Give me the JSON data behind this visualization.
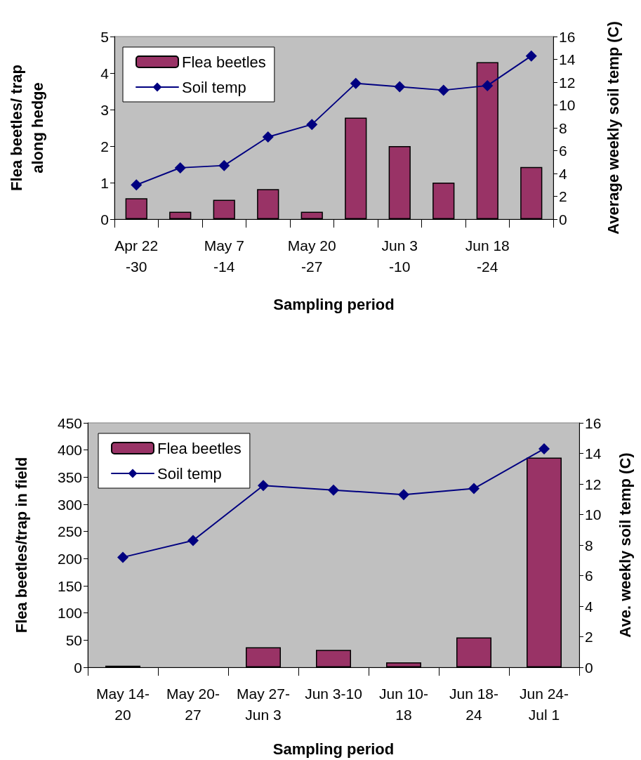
{
  "chart_data": [
    {
      "type": "bar",
      "categories": [
        "Apr 22\n-30",
        null,
        "May 7\n-14",
        null,
        "May 20\n-27",
        null,
        "Jun 3\n-10",
        null,
        "Jun 18\n-24",
        null
      ],
      "series": [
        {
          "name": "Flea beetles",
          "color": "#993366",
          "values": [
            0.57,
            0.2,
            0.53,
            0.82,
            0.2,
            2.78,
            2.0,
            1.0,
            4.3,
            1.43
          ]
        },
        {
          "name": "Soil temp",
          "type": "line",
          "axis": "y2",
          "color": "#000080",
          "values": [
            3.0,
            4.5,
            4.7,
            7.2,
            8.3,
            11.9,
            11.6,
            11.3,
            11.7,
            14.3
          ]
        }
      ],
      "xlabel": "Sampling period",
      "ylabel": "Flea beetles/ trap\nalong hedge",
      "y2label": "Average weekly soil temp (C)",
      "ylim": [
        0,
        5
      ],
      "yticks": [
        0,
        1,
        2,
        3,
        4,
        5
      ],
      "y2lim": [
        0,
        16
      ],
      "y2ticks": [
        0,
        2,
        4,
        6,
        8,
        10,
        12,
        14,
        16
      ],
      "grid": false,
      "legend": "top left",
      "marker": "diamond",
      "line_style": "solid"
    },
    {
      "type": "bar",
      "categories": [
        "May 14-\n20",
        "May 20-\n27",
        "May 27-\nJun 3",
        "Jun 3-10",
        "Jun 10-\n18",
        "Jun 18-\n24",
        "Jun 24-\nJul 1"
      ],
      "series": [
        {
          "name": "Flea beetles",
          "color": "#993366",
          "values": [
            3,
            null,
            37,
            32,
            9,
            55,
            386
          ]
        },
        {
          "name": "Soil temp",
          "type": "line",
          "axis": "y2",
          "color": "#000080",
          "values": [
            7.2,
            8.3,
            11.9,
            11.6,
            11.3,
            11.7,
            14.3
          ]
        }
      ],
      "xlabel": "Sampling period",
      "ylabel": "Flea beetles/trap in field",
      "y2label": "Ave. weekly soil temp (C)",
      "ylim": [
        0,
        450
      ],
      "yticks": [
        0,
        50,
        100,
        150,
        200,
        250,
        300,
        350,
        400,
        450
      ],
      "y2lim": [
        0,
        16
      ],
      "y2ticks": [
        0,
        2,
        4,
        6,
        8,
        10,
        12,
        14,
        16
      ],
      "grid": false,
      "legend": "top left",
      "marker": "diamond",
      "line_style": "solid"
    }
  ]
}
